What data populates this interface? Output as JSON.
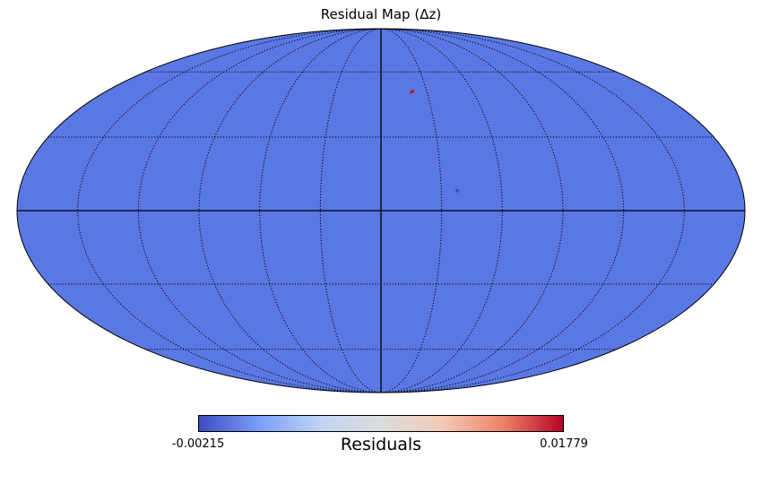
{
  "title": "Residual Map (Δz)",
  "map": {
    "projection": "mollweide",
    "fill_color": "#5a78e4",
    "graticule": {
      "meridian_step_deg": 30,
      "parallel_step_deg": 30,
      "style": "dotted"
    },
    "features": [
      {
        "name": "high-residual-spot",
        "color": "#b2182b",
        "lon_deg": -20,
        "lat_deg": 50
      },
      {
        "name": "low-residual-spot",
        "color": "#3b4cc0",
        "lon_deg": -38,
        "lat_deg": 8
      }
    ]
  },
  "colorbar": {
    "label": "Residuals",
    "min_label": "-0.00215",
    "max_label": "0.01779",
    "min": -0.00215,
    "max": 0.01779,
    "colormap": "coolwarm",
    "colors": [
      "#3b4cc0",
      "#7b9ff9",
      "#c0d4f5",
      "#dddcdc",
      "#f2cbb7",
      "#ee8468",
      "#b40426"
    ]
  }
}
